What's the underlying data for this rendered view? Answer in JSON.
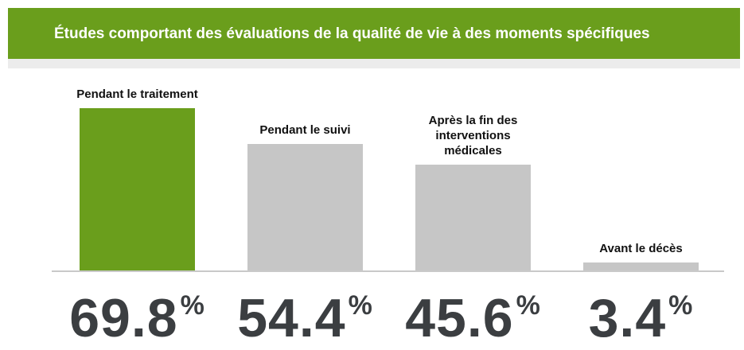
{
  "chart_data": {
    "type": "bar",
    "title": "Études comportant des évaluations de la qualité de vie à des moments spécifiques",
    "categories": [
      "Pendant le traitement",
      "Pendant le suivi",
      "Après la fin des\ninterventions\nmédicales",
      "Avant le décès"
    ],
    "values": [
      69.8,
      54.4,
      45.6,
      3.4
    ],
    "value_labels": [
      "69.8%",
      "54.4%",
      "45.6%",
      "3.4%"
    ],
    "colors": [
      "#6a9e1c",
      "#c6c6c6",
      "#c6c6c6",
      "#c6c6c6"
    ]
  }
}
